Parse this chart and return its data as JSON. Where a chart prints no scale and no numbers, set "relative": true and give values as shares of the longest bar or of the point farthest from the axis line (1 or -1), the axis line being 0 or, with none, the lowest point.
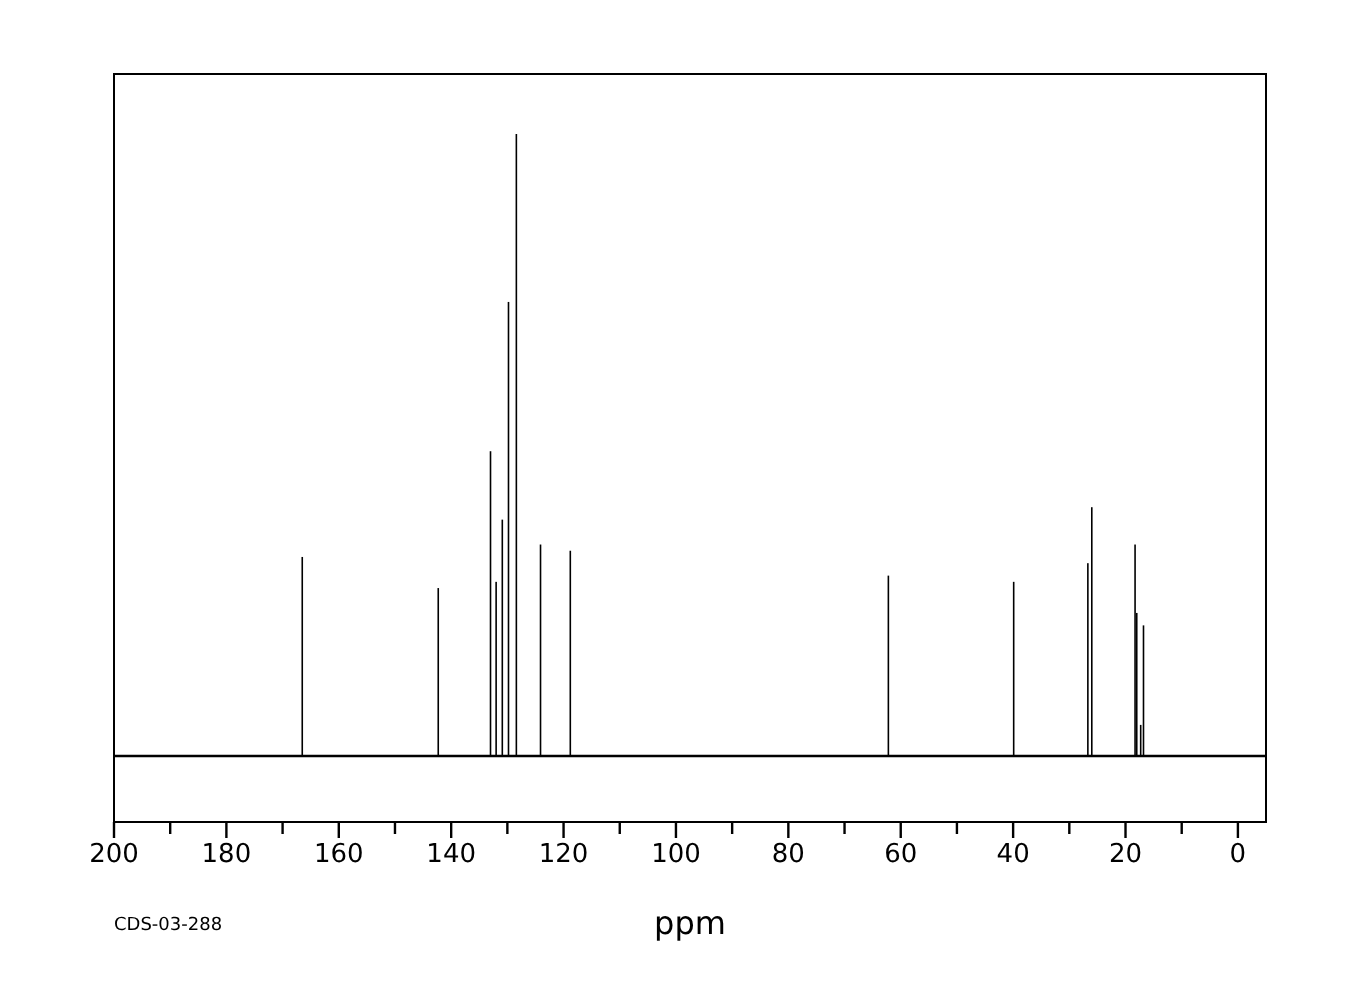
{
  "chart_data": {
    "type": "bar",
    "relative": true,
    "xlabel": "ppm",
    "annotations": [
      "CDS-03-288"
    ],
    "xlim": [
      200,
      -5
    ],
    "xticks": [
      200,
      180,
      160,
      140,
      120,
      100,
      80,
      60,
      40,
      20,
      0
    ],
    "tick_labels": "x",
    "grid": false,
    "series": [
      {
        "color": "#000000",
        "x": [
          166.5,
          142.3,
          133.0,
          132.0,
          130.9,
          129.8,
          128.4,
          124.1,
          118.8,
          62.2,
          39.9,
          26.7,
          26.0,
          18.3,
          18.0,
          17.3,
          16.8
        ],
        "values": [
          0.32,
          0.27,
          0.49,
          0.28,
          0.38,
          0.73,
          1,
          0.34,
          0.33,
          0.29,
          0.28,
          0.31,
          0.4,
          0.34,
          0.23,
          0.05,
          0.21
        ]
      }
    ]
  }
}
